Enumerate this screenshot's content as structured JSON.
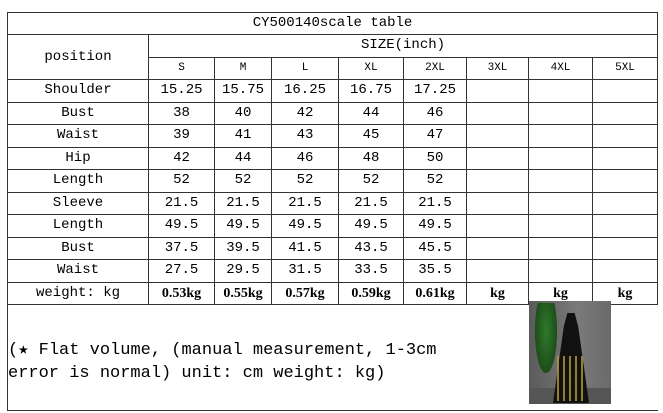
{
  "title": "CY500140scale table",
  "position_header": "position",
  "size_header": "SIZE(inch)",
  "sizes": [
    "S",
    "M",
    "L",
    "XL",
    "2XL",
    "3XL",
    "4XL",
    "5XL"
  ],
  "rows": [
    {
      "label": "Shoulder",
      "values": [
        "15.25",
        "15.75",
        "16.25",
        "16.75",
        "17.25",
        "",
        "",
        ""
      ]
    },
    {
      "label": "Bust",
      "values": [
        "38",
        "40",
        "42",
        "44",
        "46",
        "",
        "",
        ""
      ]
    },
    {
      "label": "Waist",
      "values": [
        "39",
        "41",
        "43",
        "45",
        "47",
        "",
        "",
        ""
      ]
    },
    {
      "label": "Hip",
      "values": [
        "42",
        "44",
        "46",
        "48",
        "50",
        "",
        "",
        ""
      ]
    },
    {
      "label": "Length",
      "values": [
        "52",
        "52",
        "52",
        "52",
        "52",
        "",
        "",
        ""
      ]
    },
    {
      "label": "Sleeve",
      "values": [
        "21.5",
        "21.5",
        "21.5",
        "21.5",
        "21.5",
        "",
        "",
        ""
      ]
    },
    {
      "label": "Length",
      "values": [
        "49.5",
        "49.5",
        "49.5",
        "49.5",
        "49.5",
        "",
        "",
        ""
      ]
    },
    {
      "label": "Bust",
      "values": [
        "37.5",
        "39.5",
        "41.5",
        "43.5",
        "45.5",
        "",
        "",
        ""
      ]
    },
    {
      "label": "Waist",
      "values": [
        "27.5",
        "29.5",
        "31.5",
        "33.5",
        "35.5",
        "",
        "",
        ""
      ]
    },
    {
      "label": "weight: kg",
      "values": [
        "0.53kg",
        "0.55kg",
        "0.57kg",
        "0.59kg",
        "0.61kg",
        "kg",
        "kg",
        "kg"
      ]
    }
  ],
  "note": "(★ Flat volume, (manual measurement, 1-3cm error is normal) unit: cm weight: kg)",
  "product_image": "woman in black embellished long dress"
}
